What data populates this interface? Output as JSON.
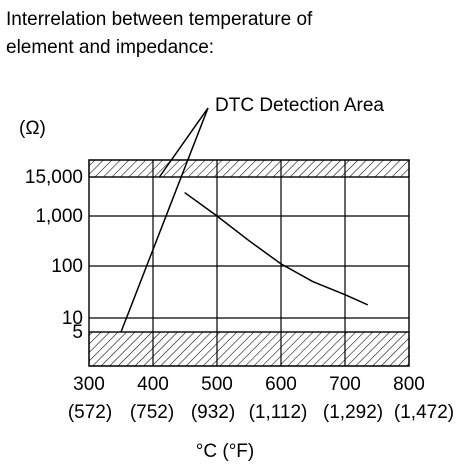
{
  "chart_data": {
    "type": "line",
    "title_lines": [
      "Interrelation between temperature of",
      "element and impedance:"
    ],
    "xlabel": "°C (°F)",
    "ylabel": "(Ω)",
    "x_ticks": [
      {
        "c": 300,
        "c_label": "300",
        "f_label": "(572)"
      },
      {
        "c": 400,
        "c_label": "400",
        "f_label": "(752)"
      },
      {
        "c": 500,
        "c_label": "500",
        "f_label": "(932)"
      },
      {
        "c": 600,
        "c_label": "600",
        "f_label": "(1,112)"
      },
      {
        "c": 700,
        "c_label": "700",
        "f_label": "(1,292)"
      },
      {
        "c": 800,
        "c_label": "800",
        "f_label": "(1,472)"
      }
    ],
    "x_range": [
      300,
      800
    ],
    "y_scale": "log",
    "y_range": [
      1.5,
      30000
    ],
    "y_ticks": [
      {
        "value": 5,
        "label": "5"
      },
      {
        "value": 10,
        "label": "10"
      },
      {
        "value": 100,
        "label": "100"
      },
      {
        "value": 1000,
        "label": "1,000"
      },
      {
        "value": 15000,
        "label": "15,000"
      }
    ],
    "detection_areas": [
      {
        "y_from": 15000,
        "y_to": 30000
      },
      {
        "y_from": 1.5,
        "y_to": 5
      }
    ],
    "annotation": {
      "text": "DTC Detection Area",
      "targets": [
        {
          "x": 410,
          "y": 15000
        },
        {
          "x": 350,
          "y": 5
        }
      ]
    },
    "series": [
      {
        "points": [
          {
            "x": 450,
            "y": 5000
          },
          {
            "x": 500,
            "y": 1000
          },
          {
            "x": 550,
            "y": 320
          },
          {
            "x": 600,
            "y": 110
          },
          {
            "x": 650,
            "y": 50
          },
          {
            "x": 700,
            "y": 28
          },
          {
            "x": 735,
            "y": 18
          }
        ]
      }
    ],
    "grid": true
  }
}
